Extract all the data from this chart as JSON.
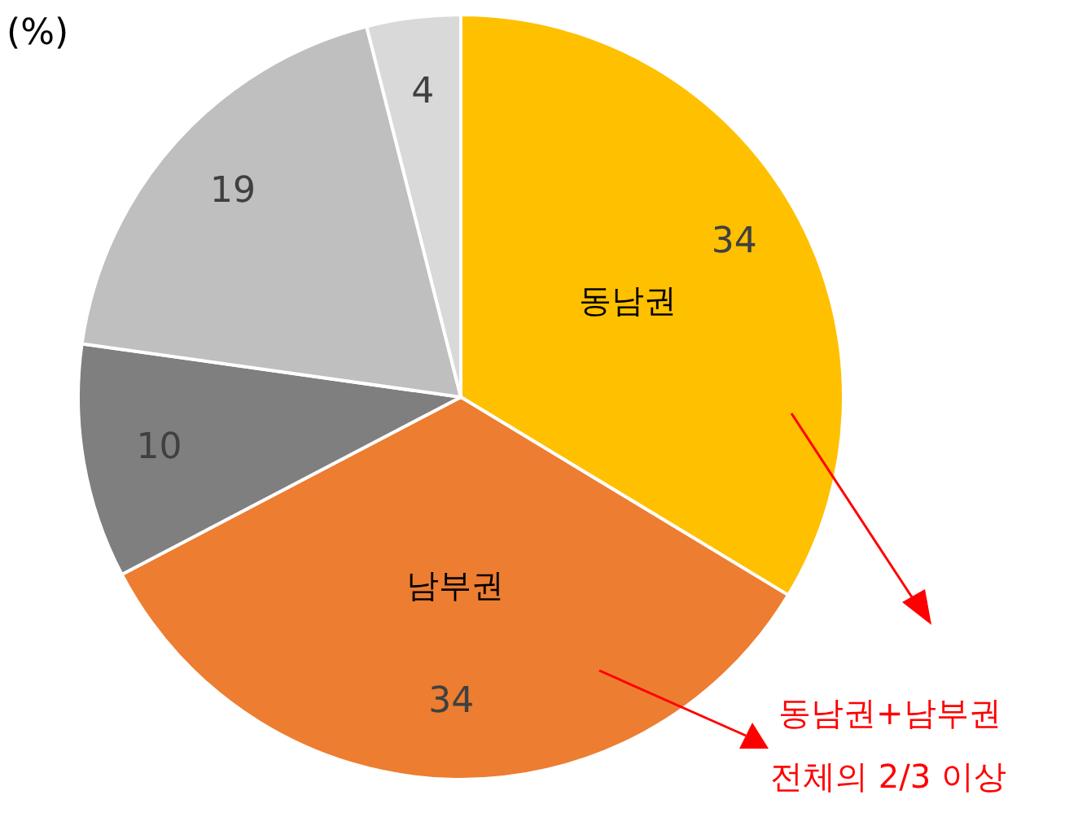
{
  "chart_data": {
    "type": "pie",
    "categories": [
      "동남권",
      "남부권",
      null,
      null,
      null
    ],
    "values": [
      34,
      34,
      10,
      19,
      4
    ],
    "colors": [
      "#ffc000",
      "#ed7d31",
      "#7f7f7f",
      "#bfbfbf",
      "#d9d9d9"
    ],
    "data_labels": true,
    "legend": false,
    "annotations": [
      "(%)",
      "동남권+남부권",
      "전체의 2/3 이상"
    ]
  }
}
